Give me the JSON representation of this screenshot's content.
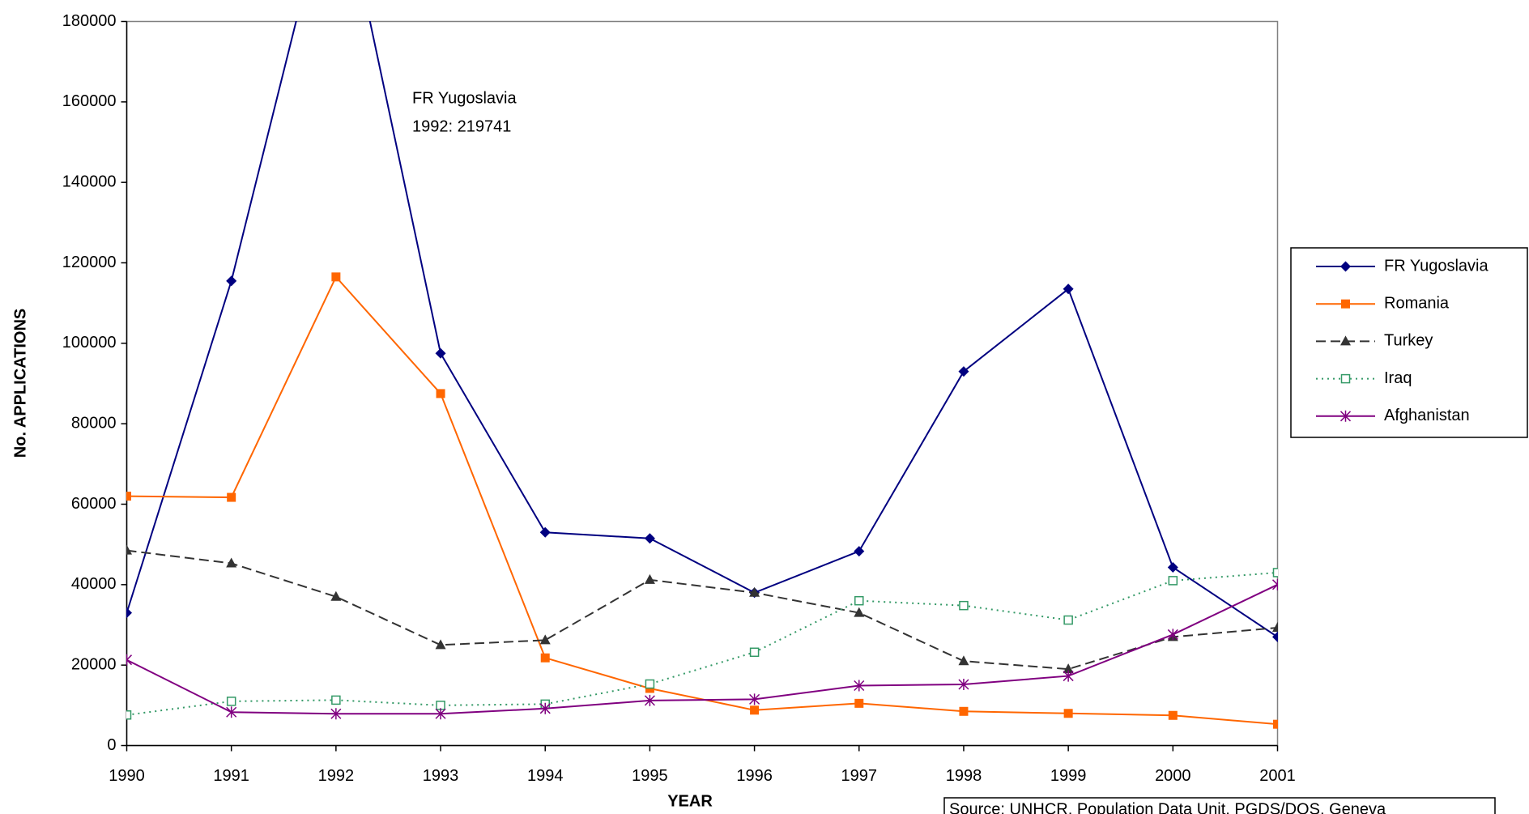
{
  "chart_data": {
    "type": "line",
    "x_label": "YEAR",
    "y_label": "No. APPLICATIONS",
    "x": [
      1990,
      1991,
      1992,
      1993,
      1994,
      1995,
      1996,
      1997,
      1998,
      1999,
      2000,
      2001
    ],
    "xlim": [
      1990,
      2001
    ],
    "xticks": [
      1990,
      1991,
      1992,
      1993,
      1994,
      1995,
      1996,
      1997,
      1998,
      1999,
      2000,
      2001
    ],
    "ylim": [
      0,
      180000
    ],
    "yticks": [
      0,
      20000,
      40000,
      60000,
      80000,
      100000,
      120000,
      140000,
      160000,
      180000
    ],
    "grid": false,
    "legend": "right",
    "annotation": [
      "FR Yugoslavia",
      "1992: 219741"
    ],
    "source": "Source: UNHCR, Population Data Unit, PGDS/DOS, Geneva",
    "series": [
      {
        "name": "FR Yugoslavia",
        "color": "#000080",
        "marker": "diamond",
        "line_style": "solid",
        "values": [
          33000,
          115500,
          219741,
          97500,
          53000,
          51500,
          38000,
          48300,
          93000,
          113500,
          44300,
          27000
        ]
      },
      {
        "name": "Romania",
        "color": "#ff6600",
        "marker": "square",
        "line_style": "solid",
        "values": [
          62000,
          61700,
          116500,
          87500,
          21800,
          14200,
          8800,
          10500,
          8500,
          8000,
          7500,
          5300
        ]
      },
      {
        "name": "Turkey",
        "color": "#333333",
        "marker": "triangle",
        "line_style": "dashed",
        "values": [
          48500,
          45300,
          37000,
          25000,
          26200,
          41200,
          38000,
          33000,
          21000,
          19000,
          27000,
          29300
        ]
      },
      {
        "name": "Iraq",
        "color": "#339966",
        "marker": "open-square",
        "line_style": "dotted",
        "values": [
          7600,
          11000,
          11300,
          10000,
          10300,
          15300,
          23200,
          36000,
          34800,
          31200,
          41000,
          43000
        ]
      },
      {
        "name": "Afghanistan",
        "color": "#800080",
        "marker": "star",
        "line_style": "solid",
        "values": [
          21300,
          8300,
          7900,
          7900,
          9200,
          11200,
          11500,
          14900,
          15200,
          17300,
          27600,
          40000
        ]
      }
    ]
  }
}
